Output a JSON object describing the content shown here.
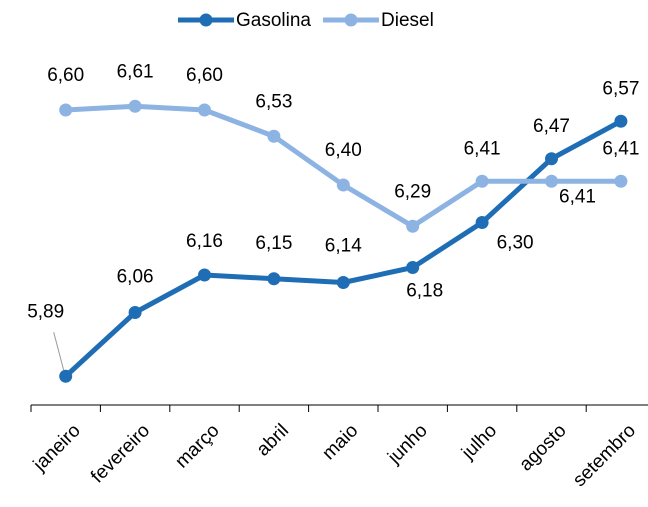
{
  "chart_data": {
    "type": "line",
    "categories": [
      "janeiro",
      "fevereiro",
      "março",
      "abril",
      "maio",
      "junho",
      "julho",
      "agosto",
      "setembro"
    ],
    "series": [
      {
        "name": "Gasolina",
        "color": "#1f6eb5",
        "values": [
          5.89,
          6.06,
          6.16,
          6.15,
          6.14,
          6.18,
          6.3,
          6.47,
          6.57
        ],
        "value_labels": [
          "5,89",
          "6,06",
          "6,16",
          "6,15",
          "6,14",
          "6,18",
          "6,30",
          "6,47",
          "6,57"
        ]
      },
      {
        "name": "Diesel",
        "color": "#8db3e2",
        "values": [
          6.6,
          6.61,
          6.6,
          6.53,
          6.4,
          6.29,
          6.41,
          6.41,
          6.41
        ],
        "value_labels": [
          "6,60",
          "6,61",
          "6,60",
          "6,53",
          "6,40",
          "6,29",
          "6,41",
          "6,41",
          "6,41"
        ]
      }
    ],
    "ylim": [
      5.8,
      6.8
    ],
    "legend": "top"
  }
}
